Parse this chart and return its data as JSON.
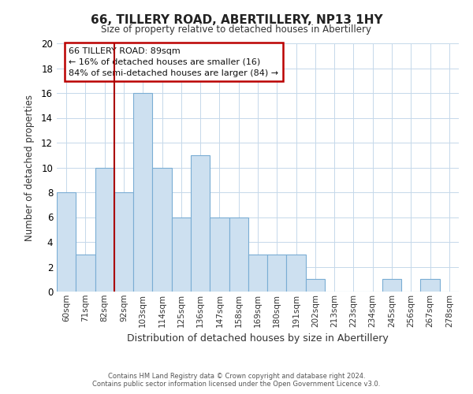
{
  "title": "66, TILLERY ROAD, ABERTILLERY, NP13 1HY",
  "subtitle": "Size of property relative to detached houses in Abertillery",
  "xlabel": "Distribution of detached houses by size in Abertillery",
  "ylabel": "Number of detached properties",
  "bar_color": "#cde0f0",
  "bar_edge_color": "#7aadd4",
  "categories": [
    "60sqm",
    "71sqm",
    "82sqm",
    "92sqm",
    "103sqm",
    "114sqm",
    "125sqm",
    "136sqm",
    "147sqm",
    "158sqm",
    "169sqm",
    "180sqm",
    "191sqm",
    "202sqm",
    "213sqm",
    "223sqm",
    "234sqm",
    "245sqm",
    "256sqm",
    "267sqm",
    "278sqm"
  ],
  "values": [
    8,
    3,
    10,
    8,
    16,
    10,
    6,
    11,
    6,
    6,
    3,
    3,
    3,
    1,
    0,
    0,
    0,
    1,
    0,
    1,
    0
  ],
  "vline_x_index": 3,
  "vline_color": "#aa0000",
  "ylim": [
    0,
    20
  ],
  "yticks": [
    0,
    2,
    4,
    6,
    8,
    10,
    12,
    14,
    16,
    18,
    20
  ],
  "annotation_title": "66 TILLERY ROAD: 89sqm",
  "annotation_line1": "← 16% of detached houses are smaller (16)",
  "annotation_line2": "84% of semi-detached houses are larger (84) →",
  "footer1": "Contains HM Land Registry data © Crown copyright and database right 2024.",
  "footer2": "Contains public sector information licensed under the Open Government Licence v3.0."
}
